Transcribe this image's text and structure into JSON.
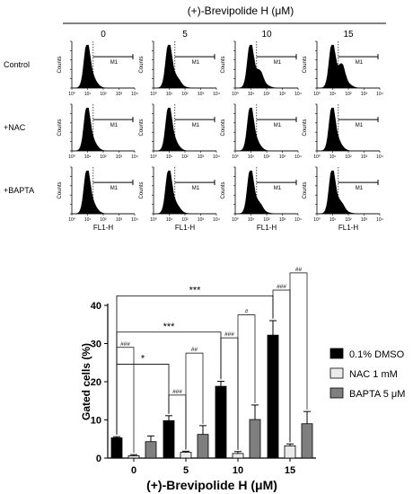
{
  "chart_data": [
    {
      "type": "histogram-grid",
      "title": "(+)-Brevipolide H (μM)",
      "columns": [
        "0",
        "5",
        "10",
        "15"
      ],
      "rows": [
        "Control",
        "+NAC",
        "+BAPTA"
      ],
      "xlabel": "FL1-H",
      "ylabel": "Counts",
      "x_ticks": [
        "10⁰",
        "10¹",
        "10²",
        "10³",
        "10⁴"
      ],
      "gate_label": "M1",
      "right_shift": [
        [
          0.0,
          0.06,
          0.2,
          0.32
        ],
        [
          0.0,
          0.0,
          0.0,
          0.0
        ],
        [
          0.0,
          0.03,
          0.08,
          0.09
        ]
      ]
    },
    {
      "type": "bar",
      "categories": [
        "0",
        "5",
        "10",
        "15"
      ],
      "xlabel": "(+)-Brevipolide H (μM)",
      "ylabel": "Gated cells (%)",
      "ylim": [
        0,
        40
      ],
      "y_ticks": [
        0,
        10,
        20,
        30,
        40
      ],
      "legend": "right",
      "series": [
        {
          "name": "0.1% DMSO",
          "color": "#000000",
          "values": [
            5.3,
            9.8,
            18.8,
            32.2
          ],
          "errors": [
            0.3,
            1.3,
            1.3,
            3.8
          ]
        },
        {
          "name": "NAC 1 mM",
          "color": "#ebebeb",
          "values": [
            0.6,
            1.5,
            1.2,
            3.2
          ],
          "errors": [
            0.3,
            0.3,
            0.5,
            0.5
          ]
        },
        {
          "name": "BAPTA 5 μM",
          "color": "#7f7f7f",
          "values": [
            4.3,
            6.2,
            10.1,
            9.0
          ],
          "errors": [
            1.5,
            2.3,
            3.8,
            3.2
          ]
        }
      ],
      "annotations": {
        "star": [
          "*",
          "***",
          "***"
        ],
        "nac": [
          "###",
          "###",
          "###",
          "###"
        ],
        "bapta": [
          "##",
          "#",
          "##"
        ]
      }
    }
  ]
}
